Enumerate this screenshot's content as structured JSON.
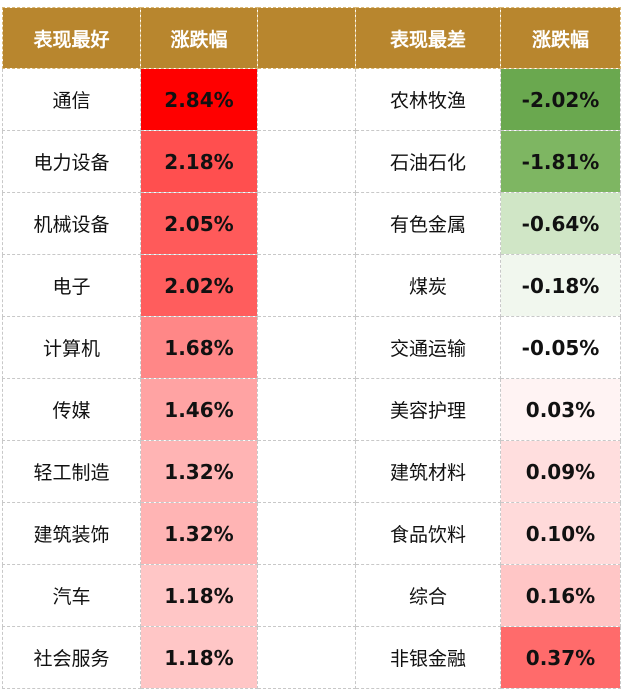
{
  "header": {
    "best_label": "表现最好",
    "best_change_label": "涨跌幅",
    "worst_label": "表现最差",
    "worst_change_label": "涨跌幅"
  },
  "best": [
    {
      "name": "通信",
      "change": "2.84%",
      "color": "#ff0000"
    },
    {
      "name": "电力设备",
      "change": "2.18%",
      "color": "#ff4f4f"
    },
    {
      "name": "机械设备",
      "change": "2.05%",
      "color": "#ff5a5a"
    },
    {
      "name": "电子",
      "change": "2.02%",
      "color": "#ff5d5d"
    },
    {
      "name": "计算机",
      "change": "1.68%",
      "color": "#ff8787"
    },
    {
      "name": "传媒",
      "change": "1.46%",
      "color": "#ffa3a3"
    },
    {
      "name": "轻工制造",
      "change": "1.32%",
      "color": "#ffb4b4"
    },
    {
      "name": "建筑装饰",
      "change": "1.32%",
      "color": "#ffb4b4"
    },
    {
      "name": "汽车",
      "change": "1.18%",
      "color": "#ffc6c6"
    },
    {
      "name": "社会服务",
      "change": "1.18%",
      "color": "#ffc6c6"
    }
  ],
  "worst": [
    {
      "name": "农林牧渔",
      "change": "-2.02%",
      "color": "#6aa84f"
    },
    {
      "name": "石油石化",
      "change": "-1.81%",
      "color": "#7eb662"
    },
    {
      "name": "有色金属",
      "change": "-0.64%",
      "color": "#d0e6c6"
    },
    {
      "name": "煤炭",
      "change": "-0.18%",
      "color": "#f1f7ee"
    },
    {
      "name": "交通运输",
      "change": "-0.05%",
      "color": "#ffffff"
    },
    {
      "name": "美容护理",
      "change": "0.03%",
      "color": "#fff3f3"
    },
    {
      "name": "建筑材料",
      "change": "0.09%",
      "color": "#ffdede"
    },
    {
      "name": "食品饮料",
      "change": "0.10%",
      "color": "#ffdada"
    },
    {
      "name": "综合",
      "change": "0.16%",
      "color": "#ffc6c6"
    },
    {
      "name": "非银金融",
      "change": "0.37%",
      "color": "#ff6b6b"
    }
  ]
}
